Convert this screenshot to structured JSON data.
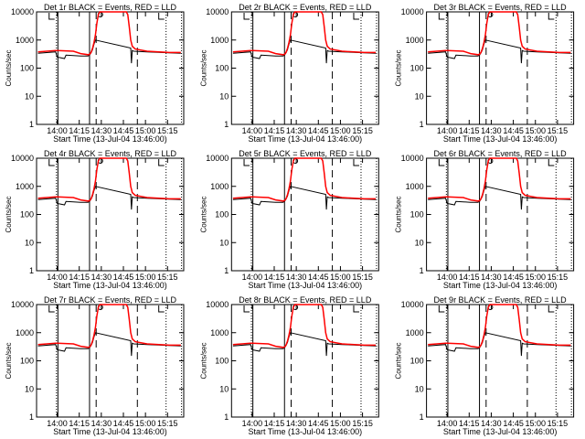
{
  "chart_data": {
    "type": "line",
    "layout": "3x3 grid",
    "xlabel": "Start Time (13-Jul-04 13:46:00)",
    "ylabel": "Counts/sec",
    "x_units": "minutes after 13:46:00",
    "xlim": [
      0,
      100
    ],
    "ylim": [
      1,
      10000
    ],
    "yscale": "log",
    "yticks": [
      {
        "value": 1,
        "label": "1"
      },
      {
        "value": 10,
        "label": "10"
      },
      {
        "value": 100,
        "label": "100"
      },
      {
        "value": 1000,
        "label": "1000"
      },
      {
        "value": 10000,
        "label": "10000"
      }
    ],
    "xticks": [
      {
        "value": 14,
        "label": "14:00"
      },
      {
        "value": 29,
        "label": "14:15"
      },
      {
        "value": 44,
        "label": "14:30"
      },
      {
        "value": 59,
        "label": "14:45"
      },
      {
        "value": 74,
        "label": "15:00"
      },
      {
        "value": 89,
        "label": "15:15"
      }
    ],
    "colors": {
      "events": "#000000",
      "lld": "#ff0000"
    },
    "vertical_lines": [
      {
        "x": 13.5,
        "style": "dotted"
      },
      {
        "x": 14.5,
        "style": "solid"
      },
      {
        "x": 36,
        "style": "solid"
      },
      {
        "x": 40.5,
        "style": "dashed"
      },
      {
        "x": 68.5,
        "style": "dashed"
      },
      {
        "x": 88,
        "style": "dotted"
      },
      {
        "x": 98.5,
        "style": "dotted"
      }
    ],
    "panels": [
      {
        "title": "Det 1r BLACK = Events, RED = LLD"
      },
      {
        "title": "Det 2r BLACK = Events, RED = LLD"
      },
      {
        "title": "Det 3r BLACK = Events, RED = LLD"
      },
      {
        "title": "Det 4r BLACK = Events, RED = LLD"
      },
      {
        "title": "Det 5r BLACK = Events, RED = LLD"
      },
      {
        "title": "Det 6r BLACK = Events, RED = LLD"
      },
      {
        "title": "Det 7r BLACK = Events, RED = LLD"
      },
      {
        "title": "Det 8r BLACK = Events, RED = LLD"
      },
      {
        "title": "Det 9r BLACK = Events, RED = LLD"
      }
    ],
    "series": [
      {
        "name": "Events",
        "color": "#000000",
        "x": [
          1,
          13,
          14,
          15,
          19,
          20,
          25,
          30,
          35,
          36,
          37,
          38,
          39,
          40,
          64,
          64.5,
          65,
          66,
          75,
          90,
          98
        ],
        "y": [
          340,
          380,
          250,
          240,
          220,
          290,
          280,
          270,
          270,
          290,
          350,
          450,
          700,
          1000,
          520,
          150,
          420,
          400,
          380,
          350,
          340
        ]
      },
      {
        "name": "LLD",
        "color": "#ff0000",
        "x": [
          1,
          13,
          14,
          25,
          30,
          35,
          36,
          37,
          38,
          39,
          40,
          41,
          42,
          43,
          61,
          62,
          63,
          64,
          65,
          67,
          75,
          90,
          98
        ],
        "y": [
          380,
          420,
          420,
          400,
          330,
          300,
          310,
          360,
          500,
          800,
          1500,
          4000,
          8000,
          12000,
          12000,
          8000,
          3000,
          1000,
          600,
          480,
          400,
          360,
          360
        ]
      }
    ]
  }
}
